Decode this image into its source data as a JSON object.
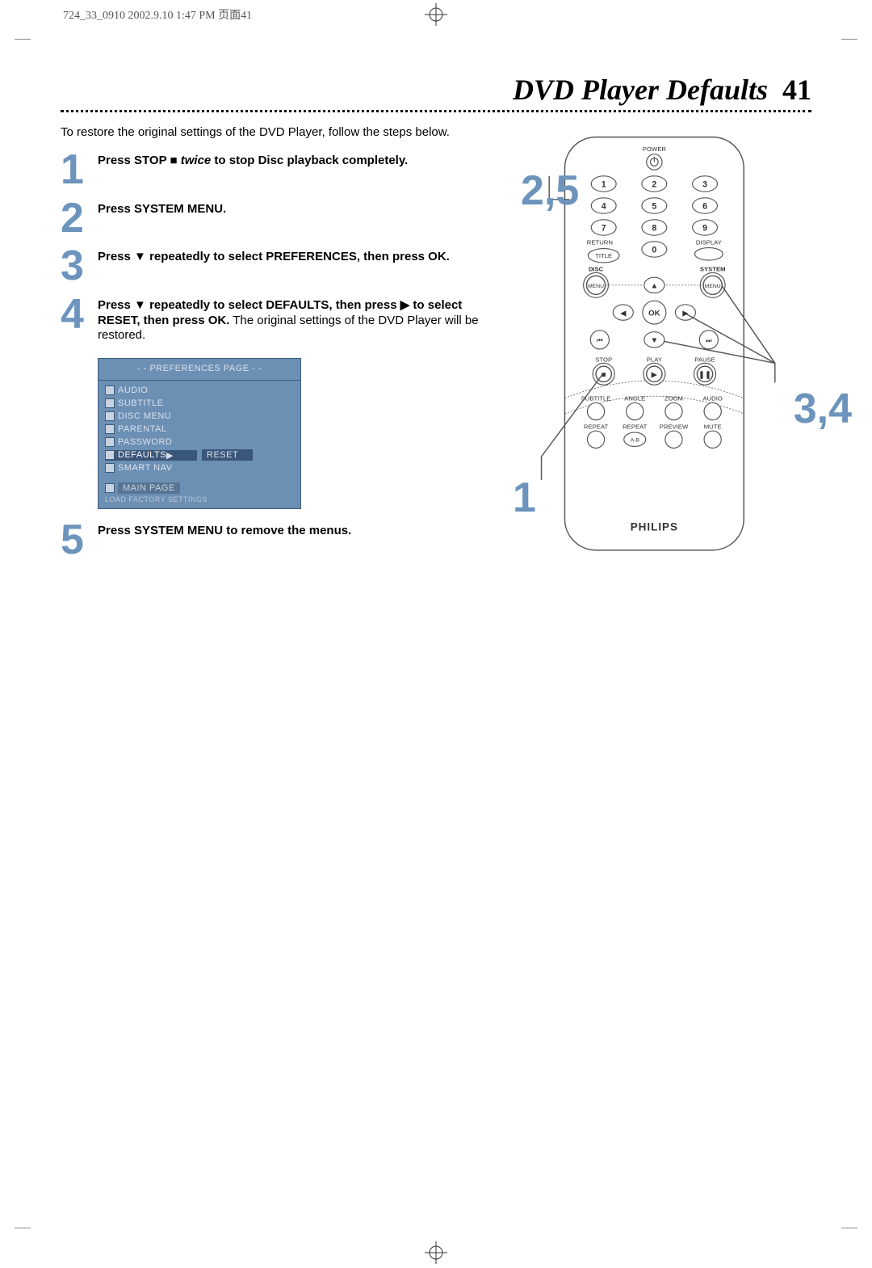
{
  "header_print_info": "724_33_0910  2002.9.10 1:47 PM  页面41",
  "title": "DVD Player Defaults",
  "page_number": "41",
  "intro": "To restore the original settings of the DVD Player, follow the steps below.",
  "steps": [
    {
      "n": "1",
      "html": "<b>Press STOP <span class='sym'>■</span> <i>twice</i> to stop Disc playback completely.</b>"
    },
    {
      "n": "2",
      "html": "<b>Press SYSTEM MENU.</b>"
    },
    {
      "n": "3",
      "html": "<b>Press <span class='sym'>▼</span> repeatedly to select PREFERENCES, then press OK.</b>"
    },
    {
      "n": "4",
      "html": "<b>Press <span class='sym'>▼</span> repeatedly to select DEFAULTS, then press <span class='sym'>▶</span> to select RESET, then press OK.</b> The original settings of the DVD Player will be restored."
    },
    {
      "n": "5",
      "html": "<b>Press SYSTEM MENU to remove the menus.</b>"
    }
  ],
  "menu": {
    "title": "- -   PREFERENCES PAGE   - -",
    "items": [
      "AUDIO",
      "SUBTITLE",
      "DISC MENU",
      "PARENTAL",
      "PASSWORD",
      "DEFAULTS",
      "SMART NAV"
    ],
    "selected_index": 5,
    "selected_right_label": "RESET",
    "main_page": "MAIN PAGE",
    "footer": "LOAD FACTORY SETTINGS"
  },
  "callouts": {
    "c25": "2,5",
    "c34": "3,4",
    "c1": "1"
  },
  "remote": {
    "brand": "PHILIPS",
    "labels": {
      "power": "POWER",
      "return": "RETURN",
      "display": "DISPLAY",
      "title": "TITLE",
      "disc": "DISC",
      "system": "SYSTEM",
      "menu": "MENU",
      "ok": "OK",
      "stop": "STOP",
      "play": "PLAY",
      "pause": "PAUSE",
      "subtitle": "SUBTITLE",
      "angle": "ANGLE",
      "zoom": "ZOOM",
      "audio": "AUDIO",
      "repeat": "REPEAT",
      "repeat_ab_label": "REPEAT",
      "repeat_ab": "A-B",
      "preview": "PREVIEW",
      "mute": "MUTE"
    },
    "digits": [
      "1",
      "2",
      "3",
      "4",
      "5",
      "6",
      "7",
      "8",
      "9",
      "0"
    ]
  },
  "colors": {
    "accent": "#6c94bc",
    "menu_bg": "#6c8fb4",
    "menu_sel": "#3a5679"
  }
}
